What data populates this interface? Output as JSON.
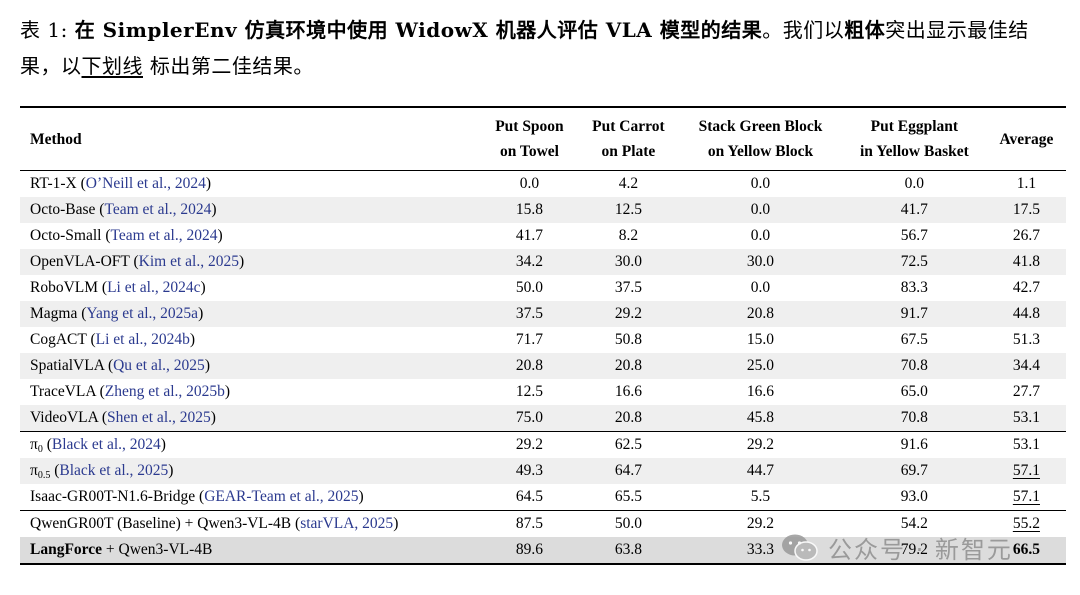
{
  "caption": {
    "label": "表 1: ",
    "bold_part": "在 SimplerEnv 仿真环境中使用 WidowX 机器人评估 VLA 模型的结果",
    "text_a": "。我们以",
    "bold_word": "粗体",
    "text_b": "突出显示最佳结果，以",
    "underline_word": "下划线",
    "text_c": " 标出第二佳结果。"
  },
  "headers": {
    "method": "Method",
    "c1a": "Put Spoon",
    "c1b": "on Towel",
    "c2a": "Put Carrot",
    "c2b": "on Plate",
    "c3a": "Stack Green Block",
    "c3b": "on Yellow Block",
    "c4a": "Put Eggplant",
    "c4b": "in Yellow Basket",
    "avg": "Average"
  },
  "rows": [
    {
      "name": "RT-1-X",
      "cite": "O’Neill et al., 2024",
      "v": [
        "0.0",
        "4.2",
        "0.0",
        "0.0",
        "1.1"
      ]
    },
    {
      "name": "Octo-Base",
      "cite": "Team et al., 2024",
      "v": [
        "15.8",
        "12.5",
        "0.0",
        "41.7",
        "17.5"
      ]
    },
    {
      "name": "Octo-Small",
      "cite": "Team et al., 2024",
      "v": [
        "41.7",
        "8.2",
        "0.0",
        "56.7",
        "26.7"
      ]
    },
    {
      "name": "OpenVLA-OFT",
      "cite": "Kim et al., 2025",
      "v": [
        "34.2",
        "30.0",
        "30.0",
        "72.5",
        "41.8"
      ]
    },
    {
      "name": "RoboVLM",
      "cite": "Li et al., 2024c",
      "v": [
        "50.0",
        "37.5",
        "0.0",
        "83.3",
        "42.7"
      ]
    },
    {
      "name": "Magma",
      "cite": "Yang et al., 2025a",
      "v": [
        "37.5",
        "29.2",
        "20.8",
        "91.7",
        "44.8"
      ]
    },
    {
      "name": "CogACT",
      "cite": "Li et al., 2024b",
      "v": [
        "71.7",
        "50.8",
        "15.0",
        "67.5",
        "51.3"
      ]
    },
    {
      "name": "SpatialVLA",
      "cite": "Qu et al., 2025",
      "v": [
        "20.8",
        "20.8",
        "25.0",
        "70.8",
        "34.4"
      ]
    },
    {
      "name": "TraceVLA",
      "cite": "Zheng et al., 2025b",
      "v": [
        "12.5",
        "16.6",
        "16.6",
        "65.0",
        "27.7"
      ]
    },
    {
      "name": "VideoVLA",
      "cite": "Shen et al., 2025",
      "v": [
        "75.0",
        "20.8",
        "45.8",
        "70.8",
        "53.1"
      ]
    },
    {
      "name": "π",
      "sub": "0",
      "cite": "Black et al., 2024",
      "v": [
        "29.2",
        "62.5",
        "29.2",
        "91.6",
        "53.1"
      ]
    },
    {
      "name": "π",
      "sub": "0.5",
      "cite": "Black et al., 2025",
      "v": [
        "49.3",
        "64.7",
        "44.7",
        "69.7",
        "57.1"
      ]
    },
    {
      "name": "Isaac-GR00T-N1.6-Bridge",
      "cite": "GEAR-Team et al., 2025",
      "v": [
        "64.5",
        "65.5",
        "5.5",
        "93.0",
        "57.1"
      ]
    },
    {
      "name": "QwenGR00T (Baseline) + Qwen3-VL-4B",
      "cite": "starVLA, 2025",
      "v": [
        "87.5",
        "50.0",
        "29.2",
        "54.2",
        "55.2"
      ]
    },
    {
      "name_bold": "LangForce",
      "name_rest": " + Qwen3-VL-4B",
      "v": [
        "89.6",
        "63.8",
        "33.3",
        "79.2",
        "66.5"
      ]
    }
  ],
  "watermark": {
    "icon": "wechat-icon",
    "text": "公众号 · 新智元",
    "color": "#8f8f8f"
  }
}
